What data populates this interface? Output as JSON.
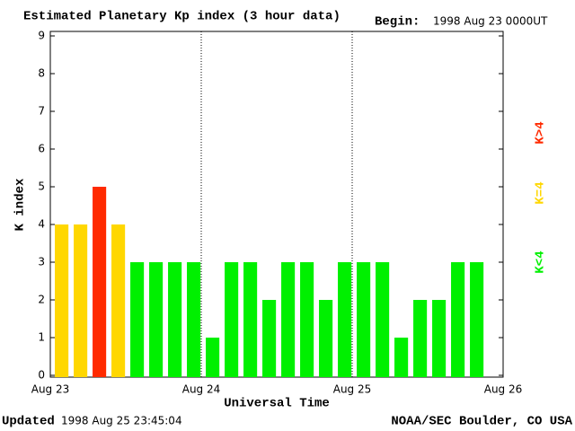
{
  "chart_data": {
    "type": "bar",
    "title": "Estimated Planetary Kp index (3 hour data)",
    "begin_label": "Begin:",
    "begin": "1998 Aug 23 0000UT",
    "x_label": "Universal Time",
    "y_label": "K index",
    "updated_label": "Updated",
    "updated": "1998 Aug 25 23:45:04",
    "credit": "NOAA/SEC Boulder, CO USA",
    "x": [
      0,
      3,
      6,
      9,
      12,
      15,
      18,
      21,
      24,
      27,
      30,
      33,
      36,
      39,
      42,
      45,
      48,
      51,
      54,
      57,
      60,
      63,
      66
    ],
    "bar_width": 3,
    "values": [
      4,
      4,
      5,
      4,
      3,
      3,
      3,
      3,
      1,
      3,
      3,
      2,
      3,
      3,
      2,
      3,
      3,
      3,
      1,
      2,
      2,
      3,
      3
    ],
    "colors": [
      "#ffd700",
      "#ffd700",
      "#ff2a00",
      "#ffd700",
      "#00f000",
      "#00f000",
      "#00f000",
      "#00f000",
      "#00f000",
      "#00f000",
      "#00f000",
      "#00f000",
      "#00f000",
      "#00f000",
      "#00f000",
      "#00f000",
      "#00f000",
      "#00f000",
      "#00f000",
      "#00f000",
      "#00f000",
      "#00f000",
      "#00f000"
    ],
    "xlim": [
      0,
      72
    ],
    "xticks": [
      {
        "value": 0,
        "label": "Aug 23"
      },
      {
        "value": 24,
        "label": "Aug 24"
      },
      {
        "value": 48,
        "label": "Aug 25"
      },
      {
        "value": 72,
        "label": "Aug 26"
      }
    ],
    "ylim": [
      0,
      9
    ],
    "yticks": [
      0,
      1,
      2,
      3,
      4,
      5,
      6,
      7,
      8,
      9
    ],
    "legend": [
      {
        "label": "K>4",
        "color": "#ff2a00"
      },
      {
        "label": "K=4",
        "color": "#ffd700"
      },
      {
        "label": "K<4",
        "color": "#00f000"
      }
    ]
  }
}
